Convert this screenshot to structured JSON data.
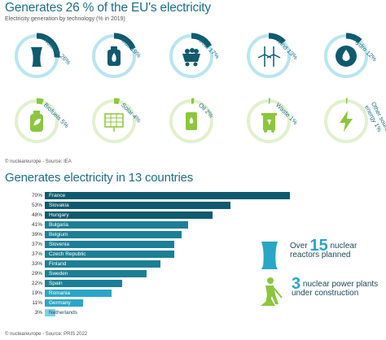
{
  "section1": {
    "title": "Generates 26 % of the EU's electricity",
    "subtitle": "Electricity generation by technology (% in 2019)",
    "credit": "© nucleareurope - Source: IEA"
  },
  "technologies": [
    {
      "label": "Nuclear 26%",
      "value": 26,
      "icon": "cooling-tower-icon"
    },
    {
      "label": "Gas 19%",
      "value": 19,
      "icon": "gas-flame-icon"
    },
    {
      "label": "Coal 17%",
      "value": 17,
      "icon": "coal-cart-icon"
    },
    {
      "label": "Wind 13%",
      "value": 13,
      "icon": "wind-turbine-icon"
    },
    {
      "label": "Hydro 12%",
      "value": 12,
      "icon": "water-drop-icon"
    },
    {
      "label": "Biofuels 5%",
      "value": 5,
      "icon": "biofuel-canister-icon"
    },
    {
      "label": "Solar 4%",
      "value": 4,
      "icon": "solar-panel-icon"
    },
    {
      "label": "Oil 2%",
      "value": 2,
      "icon": "oil-barrel-icon"
    },
    {
      "label": "Waste 1%",
      "value": 1,
      "icon": "waste-bin-icon"
    },
    {
      "label": "Other sources of energy 1%",
      "value": 1,
      "icon": "lightning-icon"
    }
  ],
  "section2": {
    "title": "Generates electricity in 13 countries",
    "credit": "© nucleareurope - Source: PRIS 2022"
  },
  "chart_data": {
    "type": "bar",
    "title": "Generates electricity in 13 countries",
    "categories": [
      "France",
      "Slovakia",
      "Hungary",
      "Bulgaria",
      "Belgium",
      "Slovenia",
      "Czech Republic",
      "Finland",
      "Sweden",
      "Spain",
      "Romania",
      "Germany",
      "Netherlands"
    ],
    "values": [
      70,
      53,
      48,
      41,
      39,
      37,
      37,
      33,
      29,
      22,
      19,
      11,
      3
    ],
    "value_labels": [
      "70%",
      "53%",
      "48%",
      "41%",
      "39%",
      "37%",
      "37%",
      "33%",
      "29%",
      "22%",
      "19%",
      "11%",
      "3%"
    ],
    "xlim": [
      0,
      100
    ],
    "colors": {
      "France": "#0f5a6e",
      "Slovakia": "#0f5a6e",
      "Hungary": "#0f5a6e",
      "Bulgaria": "#1c7f95",
      "Belgium": "#1c7f95",
      "Slovenia": "#1c7f95",
      "Czech Republic": "#1c7f95",
      "Finland": "#1c7f95",
      "Sweden": "#1c7f95",
      "Spain": "#1c7f95",
      "Romania": "#2aa6c6",
      "Germany": "#2aa6c6",
      "Netherlands": "#7fd0e4"
    }
  },
  "stats": {
    "reactors_prefix": "Over",
    "reactors_number": "15",
    "reactors_suffix_1": "nuclear",
    "reactors_suffix_2": "reactors planned",
    "construction_number": "3",
    "construction_suffix_1": "nuclear power plants",
    "construction_suffix_2": "under construction"
  },
  "colors": {
    "ring_dark": "#0f5a6e",
    "ring_light": "#7fd0e4",
    "accent": "#2aa6c6",
    "green": "#8cc63f",
    "green_light": "#c9e3a6"
  }
}
